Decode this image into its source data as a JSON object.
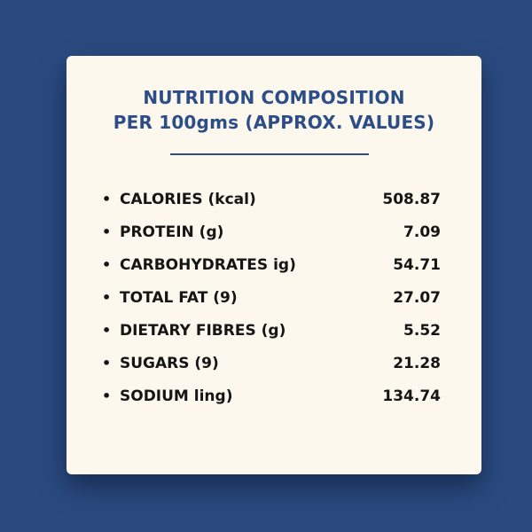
{
  "card": {
    "title_line1": "NUTRITION COMPOSITION",
    "title_line2": "PER 100gms (APPROX. VALUES)",
    "bullet": "•",
    "items": [
      {
        "label": "CALORIES (kcal)",
        "value": "508.87"
      },
      {
        "label": "PROTEIN (g)",
        "value": "7.09"
      },
      {
        "label": "CARBOHYDRATES ig)",
        "value": "54.71"
      },
      {
        "label": "TOTAL FAT (9)",
        "value": "27.07"
      },
      {
        "label": "DIETARY FIBRES (g)",
        "value": "5.52"
      },
      {
        "label": "SUGARS (9)",
        "value": "21.28"
      },
      {
        "label": "SODIUM ling)",
        "value": "134.74"
      }
    ]
  },
  "colors": {
    "background": "#2a4a7f",
    "card": "#fcf8ee",
    "accent": "#2c4d86",
    "text": "#151515"
  }
}
